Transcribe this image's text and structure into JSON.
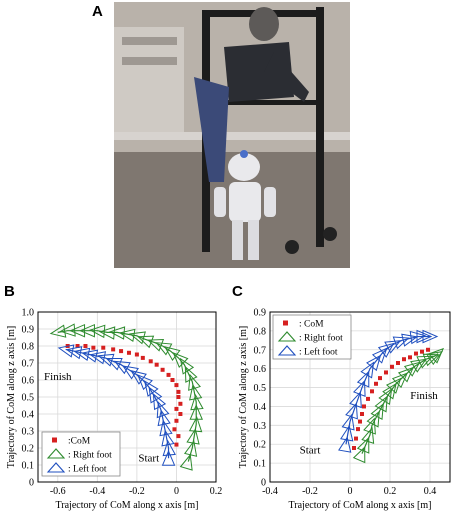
{
  "panel_labels": {
    "a": "A",
    "b": "B",
    "c": "C"
  },
  "photo": {
    "description_icon": "robot-walking-photo-icon",
    "colors": {
      "wall": "#b9b2aa",
      "floor": "#7f7770",
      "frame": "#1c1c1c",
      "robot": "#e9e9ec",
      "robot_accent": "#4a6fc9",
      "person_shirt": "#2b2d33",
      "person_pants": "#3b4a78"
    }
  },
  "colors": {
    "com": "#d62020",
    "right_foot": "#2e8b2e",
    "left_foot": "#1f4fbf",
    "grid": "#d9d9d9"
  },
  "chart_data": [
    {
      "type": "scatter",
      "panel": "B",
      "xlabel": "Trajectory of CoM along x axis [m]",
      "ylabel": "Trajectory of CoM along z axis [m]",
      "xlim": [
        -0.7,
        0.2
      ],
      "ylim": [
        0,
        1.0
      ],
      "xticks": [
        "-0.6",
        "-0.4",
        "-0.2",
        "0",
        "0.2"
      ],
      "xtick_values": [
        -0.6,
        -0.4,
        -0.2,
        0,
        0.2
      ],
      "yticks": [
        "0",
        "0.1",
        "0.2",
        "0.3",
        "0.4",
        "0.5",
        "0.6",
        "0.7",
        "0.8",
        "0.9",
        "1.0"
      ],
      "ytick_values": [
        0,
        0.1,
        0.2,
        0.3,
        0.4,
        0.5,
        0.6,
        0.7,
        0.8,
        0.9,
        1.0
      ],
      "grid": true,
      "legend_position": "bottom-left",
      "legend": [
        ":CoM",
        ": Right foot",
        ": Left foot"
      ],
      "annotations": [
        {
          "text": "Finish",
          "x": -0.6,
          "y": 0.6
        },
        {
          "text": "Start",
          "x": -0.14,
          "y": 0.12
        }
      ],
      "series": [
        {
          "name": ":CoM",
          "kind": "marker",
          "x": [
            0.0,
            0.01,
            -0.01,
            0.0,
            0.02,
            0.0,
            0.02,
            0.01,
            0.01,
            0.0,
            -0.02,
            -0.04,
            -0.07,
            -0.1,
            -0.13,
            -0.17,
            -0.2,
            -0.24,
            -0.28,
            -0.32,
            -0.37,
            -0.42,
            -0.46,
            -0.5,
            -0.55
          ],
          "y": [
            0.22,
            0.27,
            0.31,
            0.36,
            0.4,
            0.43,
            0.46,
            0.5,
            0.53,
            0.57,
            0.6,
            0.63,
            0.66,
            0.69,
            0.71,
            0.73,
            0.75,
            0.76,
            0.77,
            0.78,
            0.79,
            0.79,
            0.8,
            0.8,
            0.8
          ]
        },
        {
          "name": ": Right foot",
          "kind": "footprint",
          "x": [
            0.06,
            0.08,
            0.09,
            0.1,
            0.1,
            0.1,
            0.09,
            0.08,
            0.06,
            0.04,
            0.01,
            -0.03,
            -0.07,
            -0.11,
            -0.16,
            -0.2,
            -0.25,
            -0.3,
            -0.35,
            -0.4,
            -0.45,
            -0.5,
            -0.55,
            -0.6
          ],
          "y": [
            0.12,
            0.2,
            0.27,
            0.34,
            0.41,
            0.47,
            0.53,
            0.59,
            0.64,
            0.69,
            0.73,
            0.77,
            0.8,
            0.82,
            0.84,
            0.86,
            0.87,
            0.88,
            0.88,
            0.89,
            0.89,
            0.89,
            0.89,
            0.88
          ]
        },
        {
          "name": ": Left foot",
          "kind": "footprint",
          "x": [
            -0.04,
            -0.04,
            -0.05,
            -0.06,
            -0.07,
            -0.08,
            -0.1,
            -0.12,
            -0.14,
            -0.17,
            -0.2,
            -0.24,
            -0.28,
            -0.32,
            -0.36,
            -0.4,
            -0.44,
            -0.48,
            -0.52,
            -0.56
          ],
          "y": [
            0.14,
            0.2,
            0.26,
            0.32,
            0.38,
            0.43,
            0.48,
            0.52,
            0.56,
            0.6,
            0.63,
            0.66,
            0.69,
            0.71,
            0.73,
            0.74,
            0.75,
            0.76,
            0.77,
            0.78
          ]
        }
      ]
    },
    {
      "type": "scatter",
      "panel": "C",
      "xlabel": "Trajectory of CoM along x axis [m]",
      "ylabel": "Trajectory of CoM along z axis [m]",
      "xlim": [
        -0.4,
        0.5
      ],
      "ylim": [
        0,
        0.9
      ],
      "xticks": [
        "-0.4",
        "-0.2",
        "0",
        "0.2",
        "0.4"
      ],
      "xtick_values": [
        -0.4,
        -0.2,
        0,
        0.2,
        0.4
      ],
      "yticks": [
        "0",
        "0.1",
        "0.2",
        "0.3",
        "0.4",
        "0.5",
        "0.6",
        "0.7",
        "0.8",
        "0.9"
      ],
      "ytick_values": [
        0,
        0.1,
        0.2,
        0.3,
        0.4,
        0.5,
        0.6,
        0.7,
        0.8,
        0.9
      ],
      "grid": true,
      "legend_position": "top-left",
      "legend": [
        ": CoM",
        ": Right foot",
        ": Left foot"
      ],
      "annotations": [
        {
          "text": "Finish",
          "x": 0.37,
          "y": 0.44
        },
        {
          "text": "Start",
          "x": -0.2,
          "y": 0.15
        }
      ],
      "series": [
        {
          "name": ": CoM",
          "kind": "marker",
          "x": [
            0.02,
            0.03,
            0.04,
            0.05,
            0.06,
            0.07,
            0.09,
            0.11,
            0.13,
            0.15,
            0.18,
            0.21,
            0.24,
            0.27,
            0.3,
            0.33,
            0.36,
            0.39
          ],
          "y": [
            0.18,
            0.23,
            0.28,
            0.32,
            0.36,
            0.4,
            0.44,
            0.48,
            0.52,
            0.55,
            0.58,
            0.61,
            0.63,
            0.65,
            0.66,
            0.68,
            0.69,
            0.7
          ]
        },
        {
          "name": ": Right foot",
          "kind": "footprint",
          "x": [
            0.06,
            0.08,
            0.1,
            0.11,
            0.13,
            0.15,
            0.17,
            0.19,
            0.21,
            0.23,
            0.26,
            0.29,
            0.32,
            0.35,
            0.38,
            0.41,
            0.43,
            0.44
          ],
          "y": [
            0.15,
            0.2,
            0.25,
            0.3,
            0.34,
            0.38,
            0.42,
            0.46,
            0.49,
            0.52,
            0.55,
            0.58,
            0.61,
            0.63,
            0.65,
            0.66,
            0.67,
            0.68
          ]
        },
        {
          "name": ": Left foot",
          "kind": "footprint",
          "x": [
            -0.02,
            -0.01,
            0.0,
            0.02,
            0.04,
            0.06,
            0.08,
            0.1,
            0.13,
            0.16,
            0.19,
            0.22,
            0.26,
            0.3,
            0.34,
            0.37,
            0.4
          ],
          "y": [
            0.2,
            0.26,
            0.32,
            0.38,
            0.44,
            0.5,
            0.55,
            0.6,
            0.64,
            0.68,
            0.71,
            0.73,
            0.75,
            0.76,
            0.77,
            0.77,
            0.77
          ]
        }
      ]
    }
  ]
}
